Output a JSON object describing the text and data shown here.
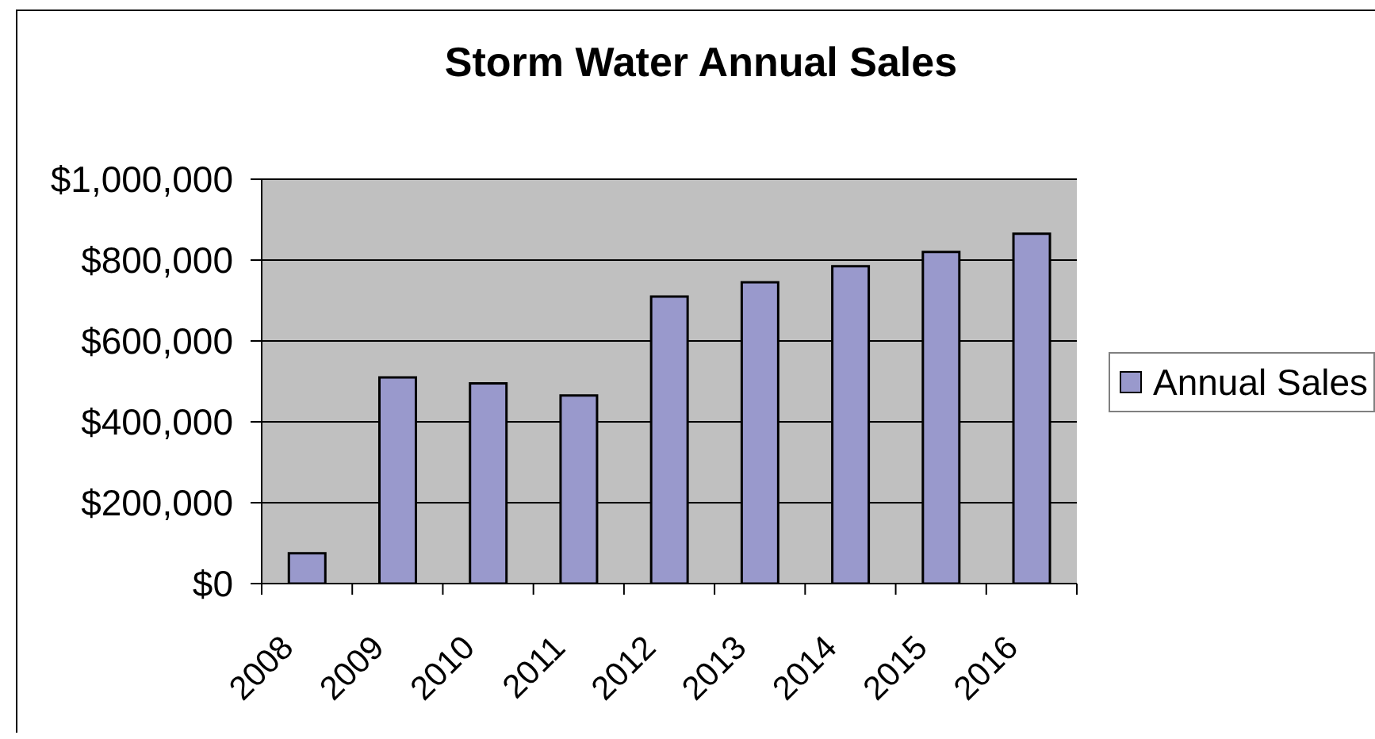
{
  "chart_data": {
    "type": "bar",
    "title": "Storm Water Annual Sales",
    "categories": [
      "2008",
      "2009",
      "2010",
      "2011",
      "2012",
      "2013",
      "2014",
      "2015",
      "2016"
    ],
    "series": [
      {
        "name": "Annual Sales",
        "color": "#9999cc",
        "values": [
          75000,
          510000,
          495000,
          465000,
          710000,
          745000,
          785000,
          820000,
          865000
        ]
      }
    ],
    "ylim": [
      0,
      1000000
    ],
    "yticks": [
      {
        "value": 0,
        "label": "$0"
      },
      {
        "value": 200000,
        "label": "$200,000"
      },
      {
        "value": 400000,
        "label": "$400,000"
      },
      {
        "value": 600000,
        "label": "$600,000"
      },
      {
        "value": 800000,
        "label": "$800,000"
      },
      {
        "value": 1000000,
        "label": "$1,000,000"
      }
    ],
    "grid": "y",
    "legend": "right"
  }
}
